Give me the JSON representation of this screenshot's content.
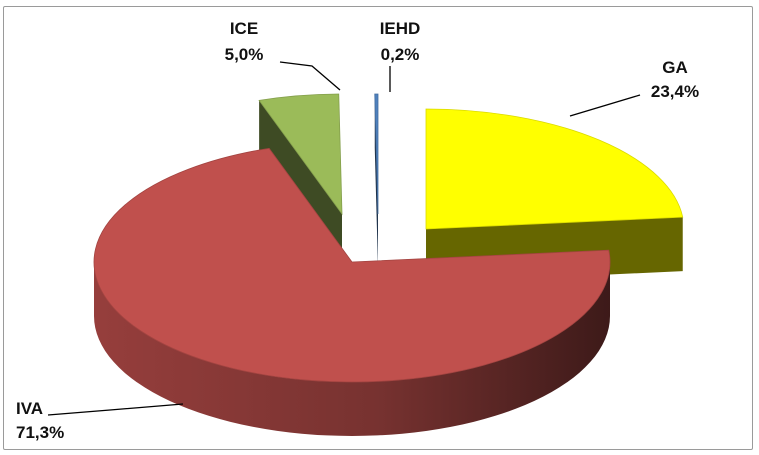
{
  "chart_data": {
    "type": "pie",
    "title": "",
    "slices": [
      {
        "name": "GA",
        "value": 23.4,
        "label": "23,4%",
        "color": "#ffff00"
      },
      {
        "name": "IVA",
        "value": 71.3,
        "label": "71,3%",
        "color": "#c0504d"
      },
      {
        "name": "ICE",
        "value": 5.0,
        "label": "5,0%",
        "color": "#9bbb59"
      },
      {
        "name": "IEHD",
        "value": 0.2,
        "label": "0,2%",
        "color": "#4f81bd"
      }
    ],
    "exploded": true,
    "three_d": true,
    "legend": "none"
  }
}
